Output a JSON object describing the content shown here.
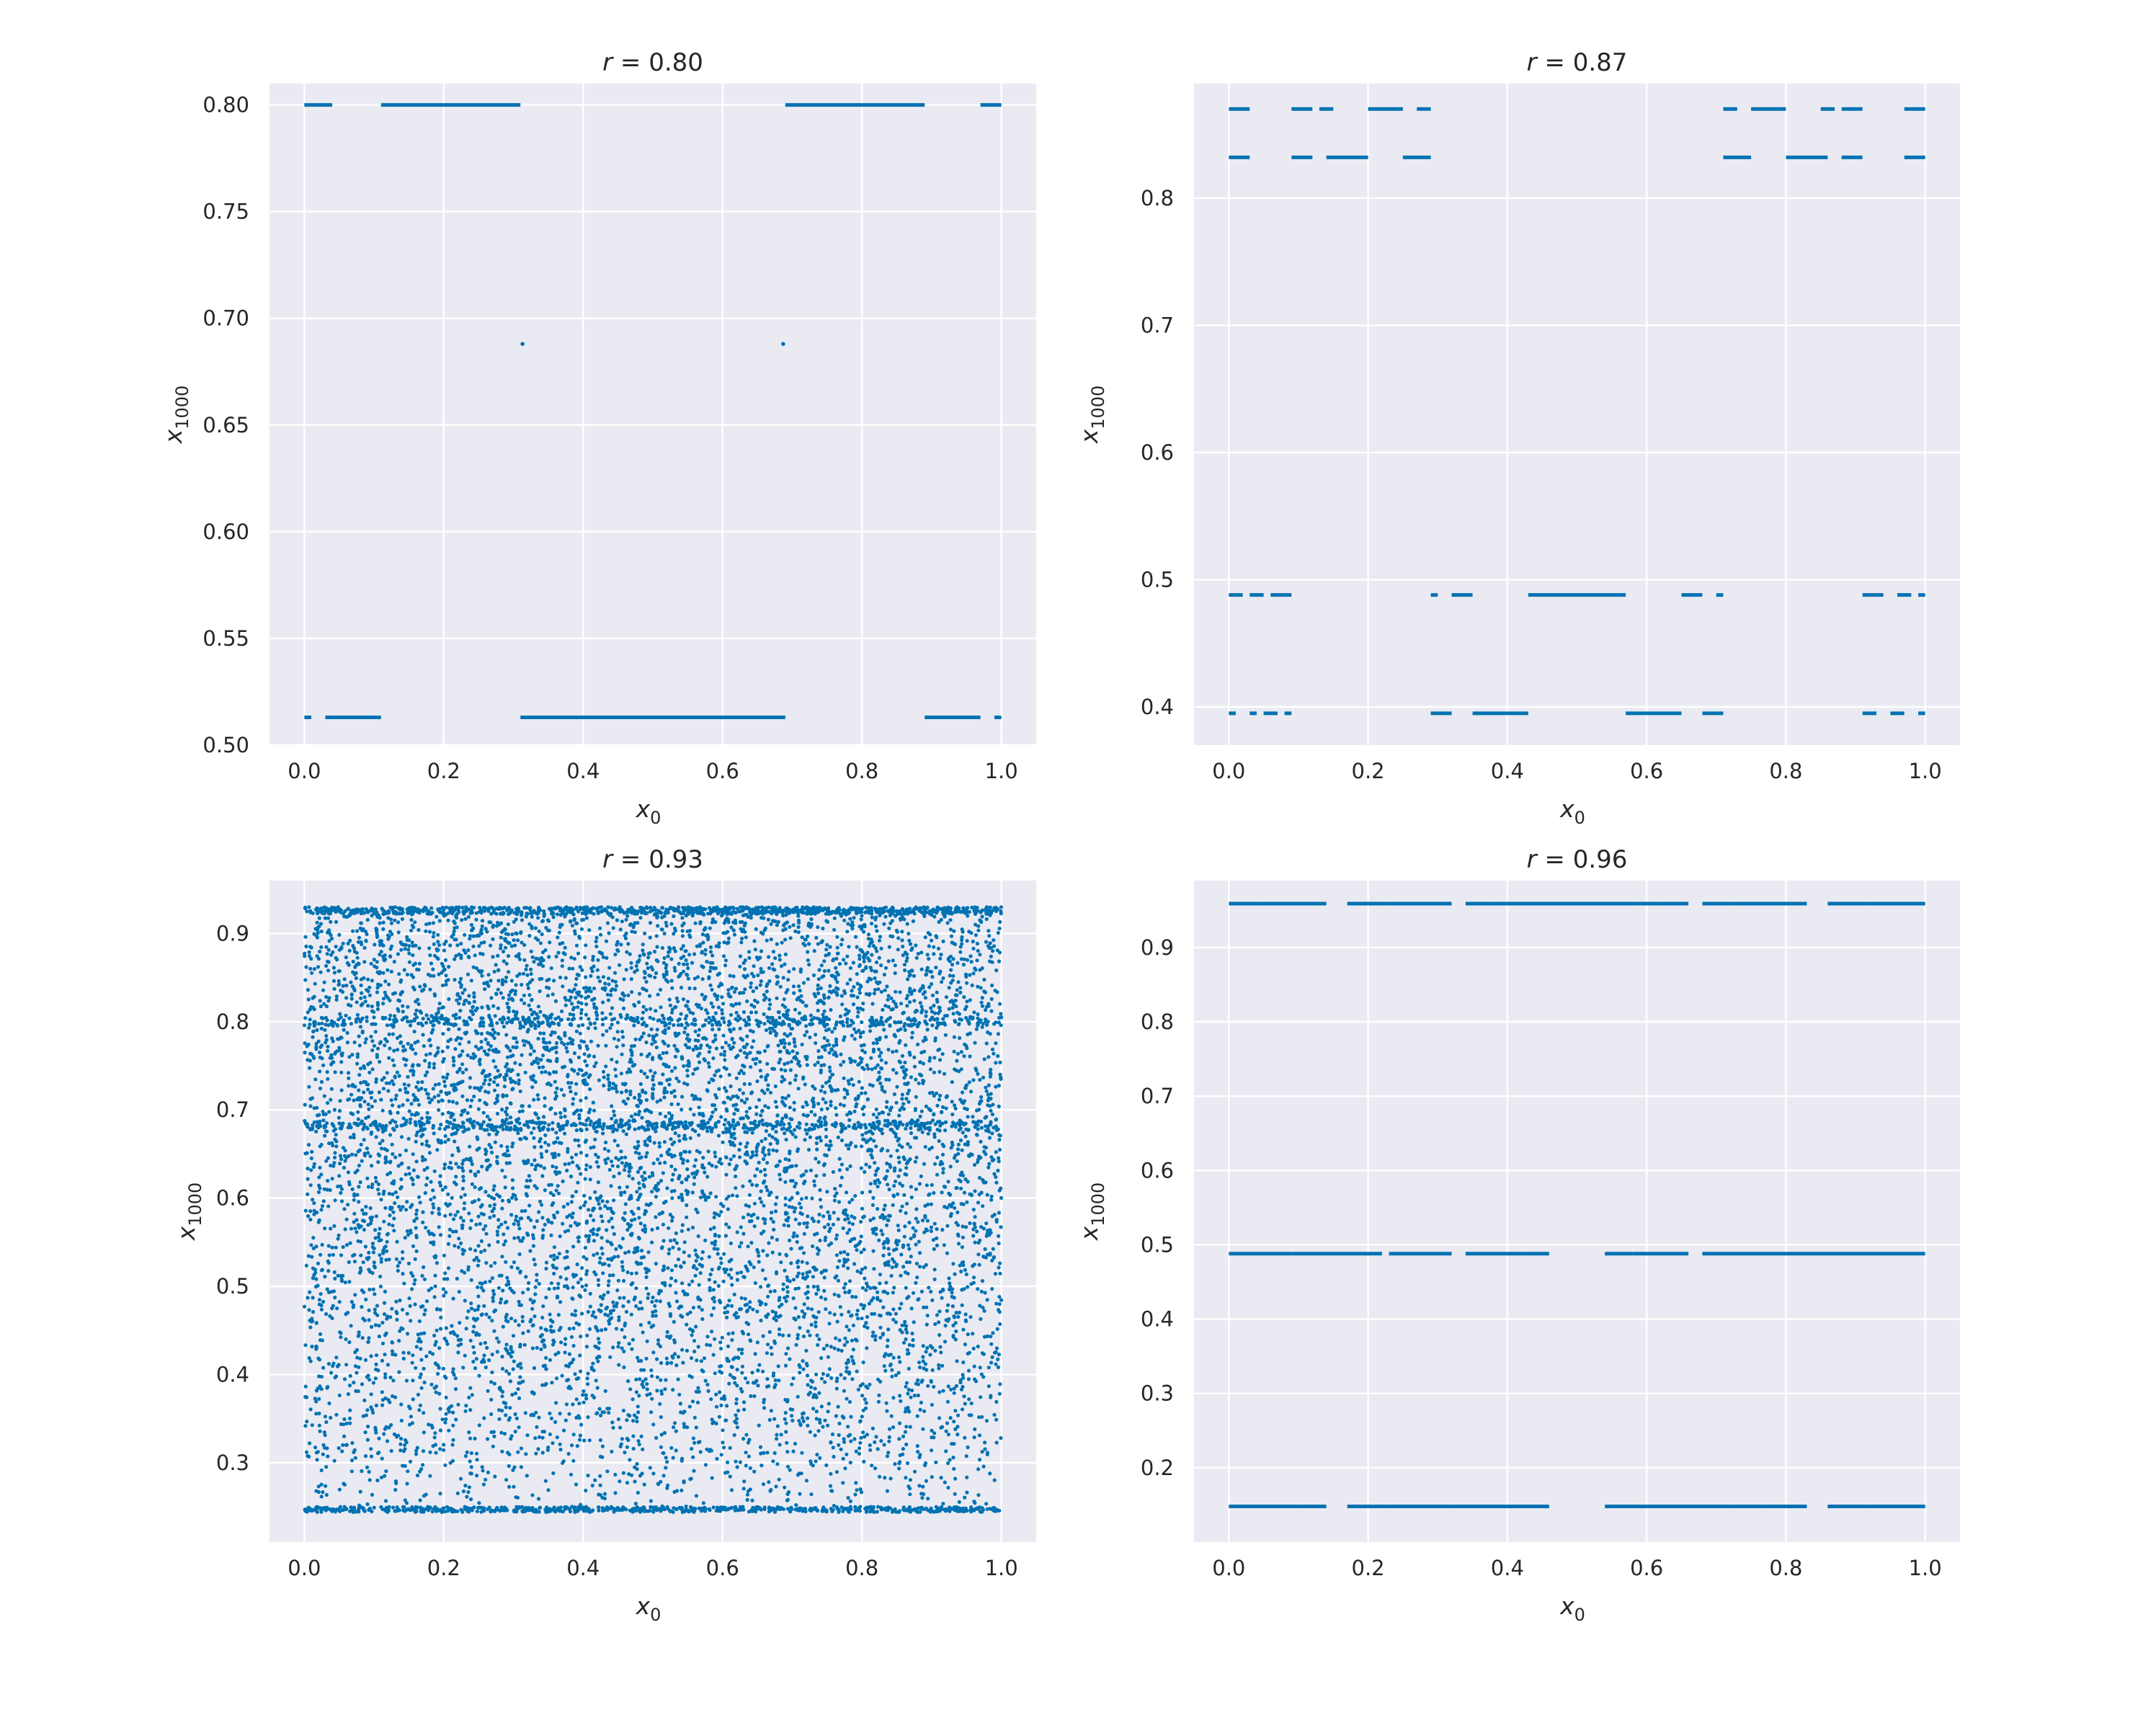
{
  "colors": {
    "plot_background": "#eaeaf2",
    "grid": "#ffffff",
    "marker": "#0072b2",
    "text": "#262626"
  },
  "chart_data": [
    {
      "type": "scatter",
      "title_prefix": "r =",
      "title_value": "0.80",
      "xlabel_base": "x",
      "xlabel_sub": "0",
      "ylabel_base": "x",
      "ylabel_sub": "1000",
      "xlim": [
        -0.05,
        1.05
      ],
      "ylim": [
        0.5,
        0.81
      ],
      "xticks": [
        0.0,
        0.2,
        0.4,
        0.6,
        0.8,
        1.0
      ],
      "xtick_labels": [
        "0.0",
        "0.2",
        "0.4",
        "0.6",
        "0.8",
        "1.0"
      ],
      "yticks": [
        0.5,
        0.55,
        0.6,
        0.65,
        0.7,
        0.75,
        0.8
      ],
      "ytick_labels": [
        "0.50",
        "0.55",
        "0.60",
        "0.65",
        "0.70",
        "0.75",
        "0.80"
      ],
      "grid": true,
      "dense": false,
      "segments": [
        {
          "y": 0.8,
          "ranges": [
            [
              0.0,
              0.04
            ],
            [
              0.11,
              0.31
            ],
            [
              0.69,
              0.89
            ],
            [
              0.97,
              1.0
            ]
          ]
        },
        {
          "y": 0.513,
          "ranges": [
            [
              0.0,
              0.01
            ],
            [
              0.03,
              0.11
            ],
            [
              0.31,
              0.69
            ],
            [
              0.89,
              0.97
            ],
            [
              0.99,
              1.0
            ]
          ]
        }
      ],
      "points": [
        [
          0.313,
          0.688
        ],
        [
          0.687,
          0.688
        ]
      ]
    },
    {
      "type": "scatter",
      "title_prefix": "r =",
      "title_value": "0.87",
      "xlabel_base": "x",
      "xlabel_sub": "0",
      "ylabel_base": "x",
      "ylabel_sub": "1000",
      "xlim": [
        -0.05,
        1.05
      ],
      "ylim": [
        0.37,
        0.89
      ],
      "xticks": [
        0.0,
        0.2,
        0.4,
        0.6,
        0.8,
        1.0
      ],
      "xtick_labels": [
        "0.0",
        "0.2",
        "0.4",
        "0.6",
        "0.8",
        "1.0"
      ],
      "yticks": [
        0.4,
        0.5,
        0.6,
        0.7,
        0.8
      ],
      "ytick_labels": [
        "0.4",
        "0.5",
        "0.6",
        "0.7",
        "0.8"
      ],
      "grid": true,
      "dense": false,
      "segments": [
        {
          "y": 0.87,
          "ranges": [
            [
              0.0,
              0.03
            ],
            [
              0.09,
              0.12
            ],
            [
              0.13,
              0.15
            ],
            [
              0.2,
              0.25
            ],
            [
              0.27,
              0.29
            ],
            [
              0.71,
              0.73
            ],
            [
              0.75,
              0.8
            ],
            [
              0.85,
              0.87
            ],
            [
              0.88,
              0.91
            ],
            [
              0.97,
              1.0
            ]
          ]
        },
        {
          "y": 0.832,
          "ranges": [
            [
              0.0,
              0.03
            ],
            [
              0.09,
              0.12
            ],
            [
              0.14,
              0.2
            ],
            [
              0.25,
              0.29
            ],
            [
              0.71,
              0.75
            ],
            [
              0.8,
              0.86
            ],
            [
              0.88,
              0.91
            ],
            [
              0.97,
              1.0
            ]
          ]
        },
        {
          "y": 0.488,
          "ranges": [
            [
              0.0,
              0.02
            ],
            [
              0.03,
              0.05
            ],
            [
              0.06,
              0.09
            ],
            [
              0.29,
              0.3
            ],
            [
              0.32,
              0.35
            ],
            [
              0.43,
              0.57
            ],
            [
              0.65,
              0.68
            ],
            [
              0.7,
              0.71
            ],
            [
              0.91,
              0.94
            ],
            [
              0.96,
              0.98
            ],
            [
              0.99,
              1.0
            ]
          ]
        },
        {
          "y": 0.395,
          "ranges": [
            [
              0.0,
              0.01
            ],
            [
              0.03,
              0.04
            ],
            [
              0.05,
              0.07
            ],
            [
              0.08,
              0.09
            ],
            [
              0.29,
              0.32
            ],
            [
              0.35,
              0.43
            ],
            [
              0.57,
              0.65
            ],
            [
              0.68,
              0.71
            ],
            [
              0.91,
              0.93
            ],
            [
              0.95,
              0.97
            ],
            [
              0.99,
              1.0
            ]
          ]
        }
      ],
      "points": []
    },
    {
      "type": "scatter",
      "title_prefix": "r =",
      "title_value": "0.93",
      "xlabel_base": "x",
      "xlabel_sub": "0",
      "ylabel_base": "x",
      "ylabel_sub": "1000",
      "xlim": [
        -0.05,
        1.05
      ],
      "ylim": [
        0.21,
        0.96
      ],
      "xticks": [
        0.0,
        0.2,
        0.4,
        0.6,
        0.8,
        1.0
      ],
      "xtick_labels": [
        "0.0",
        "0.2",
        "0.4",
        "0.6",
        "0.8",
        "1.0"
      ],
      "yticks": [
        0.3,
        0.4,
        0.5,
        0.6,
        0.7,
        0.8,
        0.9
      ],
      "ytick_labels": [
        "0.3",
        "0.4",
        "0.5",
        "0.6",
        "0.7",
        "0.8",
        "0.9"
      ],
      "grid": true,
      "dense": true,
      "dense_region": {
        "x_range": [
          0.0,
          1.0
        ],
        "y_range": [
          0.244,
          0.93
        ],
        "point_count": 10000
      },
      "segments": [],
      "points": []
    },
    {
      "type": "scatter",
      "title_prefix": "r =",
      "title_value": "0.96",
      "xlabel_base": "x",
      "xlabel_sub": "0",
      "ylabel_base": "x",
      "ylabel_sub": "1000",
      "xlim": [
        -0.05,
        1.05
      ],
      "ylim": [
        0.1,
        0.99
      ],
      "xticks": [
        0.0,
        0.2,
        0.4,
        0.6,
        0.8,
        1.0
      ],
      "xtick_labels": [
        "0.0",
        "0.2",
        "0.4",
        "0.6",
        "0.8",
        "1.0"
      ],
      "yticks": [
        0.2,
        0.3,
        0.4,
        0.5,
        0.6,
        0.7,
        0.8,
        0.9
      ],
      "ytick_labels": [
        "0.2",
        "0.3",
        "0.4",
        "0.5",
        "0.6",
        "0.7",
        "0.8",
        "0.9"
      ],
      "grid": true,
      "dense": false,
      "segments": [
        {
          "y": 0.959,
          "ranges": [
            [
              0.0,
              0.04
            ],
            [
              0.04,
              0.14
            ],
            [
              0.17,
              0.23
            ],
            [
              0.23,
              0.32
            ],
            [
              0.34,
              0.38
            ],
            [
              0.38,
              0.58
            ],
            [
              0.58,
              0.62
            ],
            [
              0.62,
              0.66
            ],
            [
              0.68,
              0.72
            ],
            [
              0.72,
              0.83
            ],
            [
              0.86,
              0.92
            ],
            [
              0.92,
              1.0
            ]
          ]
        },
        {
          "y": 0.488,
          "ranges": [
            [
              0.0,
              0.04
            ],
            [
              0.04,
              0.09
            ],
            [
              0.09,
              0.22
            ],
            [
              0.23,
              0.32
            ],
            [
              0.34,
              0.42
            ],
            [
              0.42,
              0.46
            ],
            [
              0.54,
              0.58
            ],
            [
              0.58,
              0.66
            ],
            [
              0.68,
              0.77
            ],
            [
              0.77,
              0.9
            ],
            [
              0.9,
              0.95
            ],
            [
              0.95,
              1.0
            ]
          ]
        },
        {
          "y": 0.148,
          "ranges": [
            [
              0.0,
              0.1
            ],
            [
              0.1,
              0.14
            ],
            [
              0.17,
              0.23
            ],
            [
              0.23,
              0.32
            ],
            [
              0.32,
              0.38
            ],
            [
              0.38,
              0.46
            ],
            [
              0.54,
              0.62
            ],
            [
              0.62,
              0.72
            ],
            [
              0.72,
              0.77
            ],
            [
              0.77,
              0.83
            ],
            [
              0.86,
              0.92
            ],
            [
              0.92,
              1.0
            ]
          ]
        }
      ],
      "points": []
    }
  ]
}
